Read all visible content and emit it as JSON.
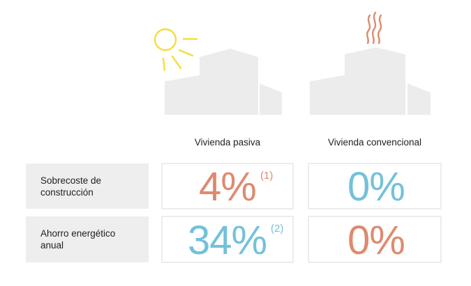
{
  "colors": {
    "orange": "#de8a6f",
    "blue": "#73c1d9",
    "sun": "#f2de3d",
    "building": "#ececec",
    "label_bg": "#eeeeee",
    "cell_border": "#ececec"
  },
  "illustrations": {
    "left": {
      "icon": "sun-icon",
      "building": "building-icon"
    },
    "right": {
      "icon": "heat-waves-icon",
      "building": "building-icon"
    }
  },
  "columns": {
    "passive": "Vivienda pasiva",
    "conventional": "Vivienda convencional"
  },
  "rows": [
    {
      "label": [
        "Sobrecoste de",
        "construcción"
      ],
      "passive": {
        "value": "4%",
        "note": "(1)",
        "color": "orange"
      },
      "conventional": {
        "value": "0%",
        "color": "blue"
      }
    },
    {
      "label": [
        "Ahorro energético",
        "anual"
      ],
      "passive": {
        "value": "34%",
        "note": "(2)",
        "color": "blue"
      },
      "conventional": {
        "value": "0%",
        "color": "orange"
      }
    }
  ]
}
